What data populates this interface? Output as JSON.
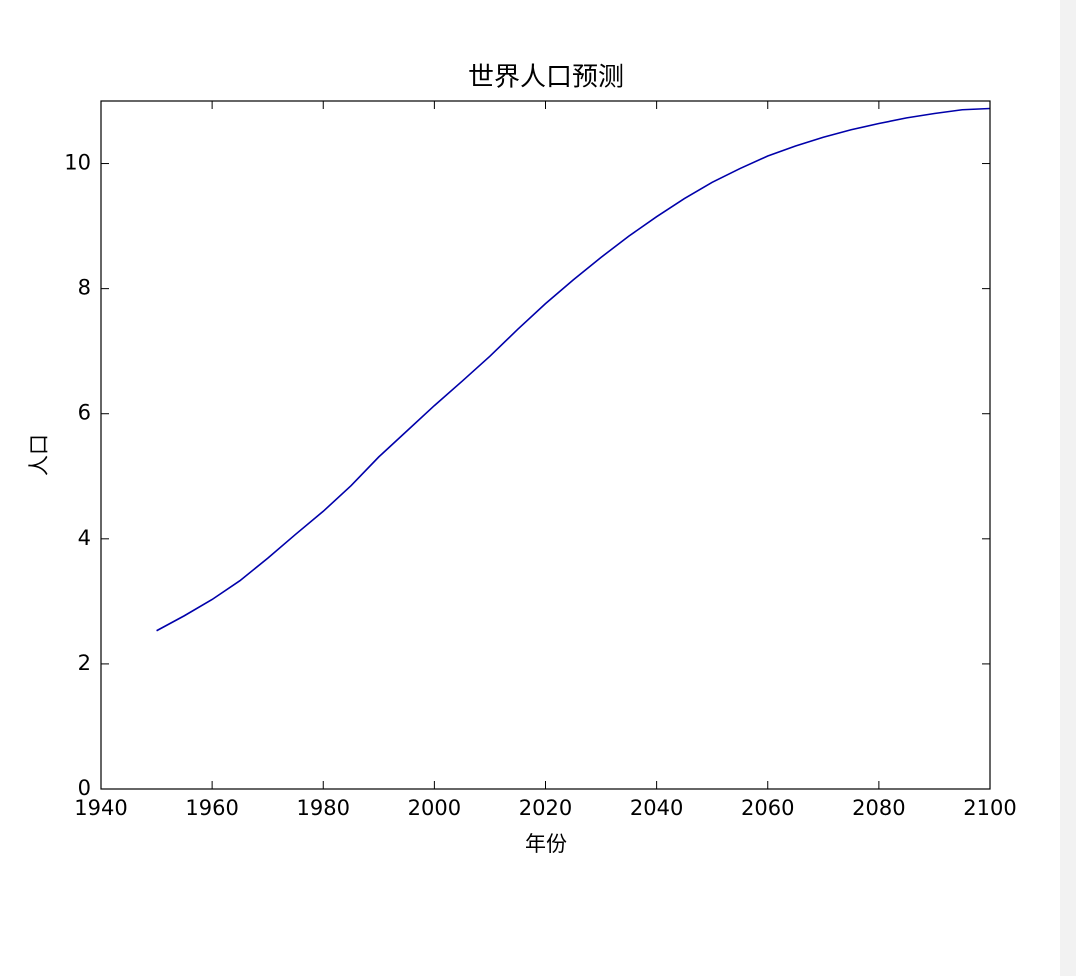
{
  "chart_data": {
    "type": "line",
    "title": "世界人口预测",
    "xlabel": "年份",
    "ylabel": "人口",
    "x": [
      1950,
      1955,
      1960,
      1965,
      1970,
      1975,
      1980,
      1985,
      1990,
      1995,
      2000,
      2005,
      2010,
      2015,
      2020,
      2025,
      2030,
      2035,
      2040,
      2045,
      2050,
      2055,
      2060,
      2065,
      2070,
      2075,
      2080,
      2085,
      2090,
      2095,
      2100
    ],
    "series": [
      {
        "color": "#0000aa",
        "values": [
          2.53,
          2.77,
          3.03,
          3.33,
          3.69,
          4.07,
          4.44,
          4.85,
          5.31,
          5.72,
          6.13,
          6.52,
          6.92,
          7.35,
          7.76,
          8.14,
          8.5,
          8.84,
          9.15,
          9.44,
          9.7,
          9.92,
          10.12,
          10.28,
          10.42,
          10.54,
          10.64,
          10.73,
          10.8,
          10.86,
          10.88
        ]
      }
    ],
    "xlim": [
      1940,
      2100
    ],
    "xticks": [
      1940,
      1960,
      1980,
      2000,
      2020,
      2040,
      2060,
      2080,
      2100
    ],
    "ylim": [
      0,
      11
    ],
    "yticks": [
      0,
      2,
      4,
      6,
      8,
      10
    ],
    "grid": false
  }
}
